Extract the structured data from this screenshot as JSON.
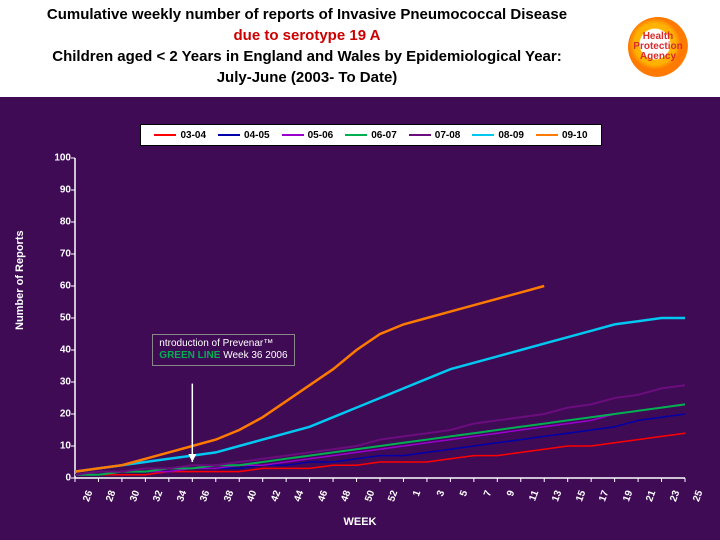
{
  "background_color": "#3f0b55",
  "header": {
    "background_color": "#ffffff",
    "title_line1": "Cumulative weekly number of reports of Invasive Pneumococcal Disease",
    "title_line2": "due to serotype 19 A",
    "title_line2_color": "#cc0000",
    "title_line3": "Children aged < 2 Years in England and Wales by Epidemiological Year:",
    "title_line4": "July-June (2003- To Date)",
    "title_color": "#000000"
  },
  "logo": {
    "line1": "Health",
    "line2": "Protection",
    "line3": "Agency"
  },
  "chart": {
    "type": "line",
    "background_color": "#3f0b55",
    "axis_color": "#ffffff",
    "tick_color": "#ffffff",
    "text_color": "#ffffff",
    "ylabel": "Number of Reports",
    "xlabel": "WEEK",
    "ylim": [
      0,
      100
    ],
    "ytick_step": 10,
    "xticks": [
      "26",
      "28",
      "30",
      "32",
      "34",
      "36",
      "38",
      "40",
      "42",
      "44",
      "46",
      "48",
      "50",
      "52",
      "1",
      "3",
      "5",
      "7",
      "9",
      "11",
      "13",
      "15",
      "17",
      "19",
      "21",
      "23",
      "25"
    ],
    "series": [
      {
        "label": "03-04",
        "color": "#ff0000",
        "width": 1.5,
        "values": [
          1,
          1,
          1,
          1,
          2,
          2,
          2,
          2,
          3,
          3,
          3,
          4,
          4,
          5,
          5,
          5,
          6,
          7,
          7,
          8,
          9,
          10,
          10,
          11,
          12,
          13,
          14
        ]
      },
      {
        "label": "04-05",
        "color": "#0000aa",
        "width": 1.5,
        "values": [
          1,
          1,
          2,
          2,
          2,
          3,
          3,
          3,
          4,
          4,
          5,
          5,
          6,
          7,
          7,
          8,
          9,
          10,
          11,
          12,
          13,
          14,
          15,
          16,
          18,
          19,
          20
        ]
      },
      {
        "label": "05-06",
        "color": "#9900cc",
        "width": 1.5,
        "values": [
          1,
          1,
          2,
          2,
          2,
          3,
          3,
          4,
          4,
          5,
          6,
          7,
          8,
          9,
          10,
          11,
          12,
          13,
          14,
          15,
          16,
          17,
          18,
          20,
          21,
          22,
          23
        ]
      },
      {
        "label": "06-07",
        "color": "#00b050",
        "width": 2,
        "values": [
          1,
          1,
          2,
          2,
          3,
          3,
          4,
          4,
          5,
          6,
          7,
          8,
          9,
          10,
          11,
          12,
          13,
          14,
          15,
          16,
          17,
          18,
          19,
          20,
          21,
          22,
          23
        ]
      },
      {
        "label": "07-08",
        "color": "#6b0d7d",
        "width": 2,
        "values": [
          1,
          2,
          2,
          3,
          3,
          4,
          4,
          5,
          6,
          7,
          8,
          9,
          10,
          12,
          13,
          14,
          15,
          17,
          18,
          19,
          20,
          22,
          23,
          25,
          26,
          28,
          29
        ]
      },
      {
        "label": "08-09",
        "color": "#00c8f0",
        "width": 2.5,
        "values": [
          2,
          3,
          4,
          5,
          6,
          7,
          8,
          10,
          12,
          14,
          16,
          19,
          22,
          25,
          28,
          31,
          34,
          36,
          38,
          40,
          42,
          44,
          46,
          48,
          49,
          50,
          50
        ]
      },
      {
        "label": "09-10",
        "color": "#ff7a00",
        "width": 2.5,
        "values": [
          2,
          3,
          4,
          6,
          8,
          10,
          12,
          15,
          19,
          24,
          29,
          34,
          40,
          45,
          48,
          50,
          52,
          54,
          56,
          58,
          60,
          null,
          null,
          null,
          null,
          null,
          null
        ]
      }
    ],
    "annotation": {
      "text_line1": "ntroduction of Prevenar™",
      "text_line2": "GREEN LINE Week 36 2006",
      "line2_prefix_color": "#00b050",
      "box_bg": "#3f0b55",
      "box_text_color": "#ffffff",
      "arrow_color": "#ffffff",
      "arrow_x_tick": "36"
    }
  },
  "label_fontsize": 11,
  "tick_fontsize": 10
}
